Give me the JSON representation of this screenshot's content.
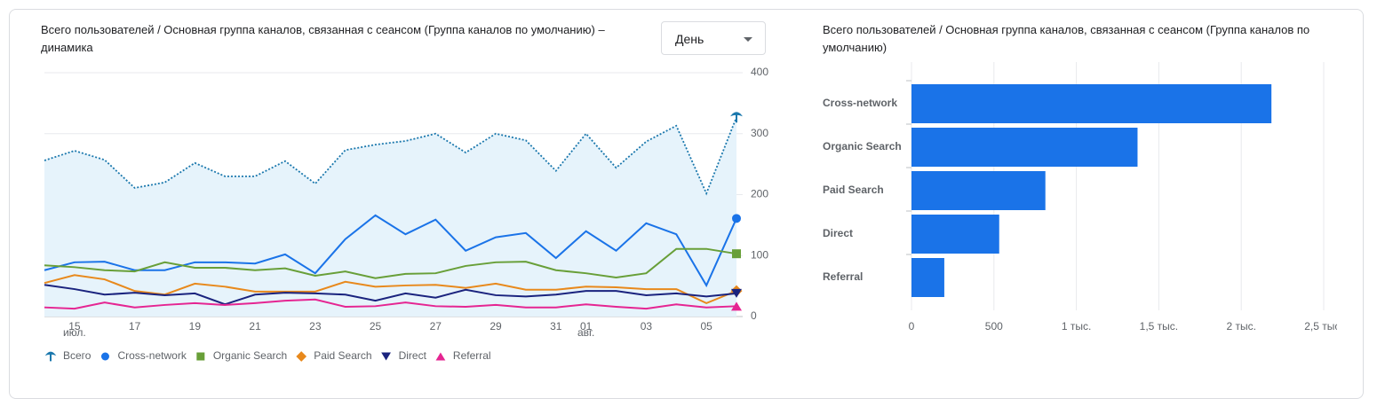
{
  "controls": {
    "period": "День"
  },
  "chart_data": [
    {
      "type": "line",
      "title": "Всего пользователей / Основная группа каналов, связанная с сеансом (Группа каналов по умолчанию) – динамика",
      "categories": [
        null,
        "15",
        null,
        "17",
        null,
        "19",
        null,
        "21",
        null,
        "23",
        null,
        "25",
        null,
        "27",
        null,
        "29",
        null,
        "31",
        "01",
        null,
        "03",
        null,
        "05",
        null
      ],
      "category_months": [
        null,
        "июл.",
        null,
        null,
        null,
        null,
        null,
        null,
        null,
        null,
        null,
        null,
        null,
        null,
        null,
        null,
        null,
        null,
        "авг.",
        null,
        null,
        null,
        null,
        null
      ],
      "ylim": [
        0,
        400
      ],
      "yticks": [
        0,
        100,
        200,
        300,
        400
      ],
      "grid": true,
      "legend": "bottom",
      "series": [
        {
          "name": "Всего",
          "color": "#1b78ad",
          "style": "dotted",
          "area": true,
          "marker": "pin",
          "values": [
            256,
            272,
            257,
            211,
            220,
            252,
            230,
            230,
            255,
            218,
            273,
            282,
            288,
            300,
            269,
            300,
            289,
            239,
            300,
            244,
            287,
            313,
            202,
            327
          ]
        },
        {
          "name": "Cross-network",
          "color": "#1a73e8",
          "marker": "circle",
          "values": [
            76,
            89,
            90,
            76,
            76,
            89,
            89,
            87,
            102,
            71,
            127,
            166,
            135,
            159,
            108,
            130,
            137,
            96,
            140,
            108,
            153,
            135,
            51,
            161
          ]
        },
        {
          "name": "Organic Search",
          "color": "#689f38",
          "marker": "square",
          "values": [
            84,
            81,
            76,
            74,
            89,
            80,
            80,
            76,
            79,
            67,
            74,
            63,
            70,
            71,
            83,
            89,
            90,
            76,
            71,
            64,
            71,
            111,
            111,
            103
          ]
        },
        {
          "name": "Paid Search",
          "color": "#e8891c",
          "marker": "diamond",
          "values": [
            55,
            68,
            61,
            42,
            36,
            54,
            49,
            41,
            41,
            41,
            57,
            49,
            51,
            52,
            47,
            54,
            44,
            44,
            49,
            48,
            45,
            45,
            22,
            42
          ]
        },
        {
          "name": "Direct",
          "color": "#1a237e",
          "marker": "down",
          "values": [
            52,
            45,
            36,
            39,
            35,
            38,
            20,
            36,
            39,
            38,
            36,
            26,
            38,
            31,
            44,
            35,
            33,
            36,
            42,
            42,
            35,
            38,
            33,
            38
          ]
        },
        {
          "name": "Referral",
          "color": "#e52592",
          "marker": "up",
          "values": [
            15,
            13,
            23,
            15,
            19,
            22,
            19,
            22,
            26,
            28,
            16,
            17,
            23,
            17,
            16,
            19,
            15,
            15,
            20,
            16,
            13,
            20,
            15,
            17
          ]
        }
      ]
    },
    {
      "type": "barh",
      "title": "Всего пользователей / Основная группа каналов, связанная с сеансом (Группа каналов по умолчанию)",
      "categories": [
        "Cross-network",
        "Organic Search",
        "Paid Search",
        "Direct",
        "Referral"
      ],
      "values": [
        2183,
        1371,
        812,
        532,
        199
      ],
      "color": "#1a73e8",
      "grid": true,
      "xlim": [
        0,
        2500
      ],
      "xticks": [
        0,
        500,
        {
          "value": 1000,
          "label": "1 тыс."
        },
        {
          "value": 1500,
          "label": "1,5 тыс."
        },
        {
          "value": 2000,
          "label": "2 тыс."
        },
        {
          "value": 2500,
          "label": "2,5 тыс."
        }
      ]
    }
  ]
}
